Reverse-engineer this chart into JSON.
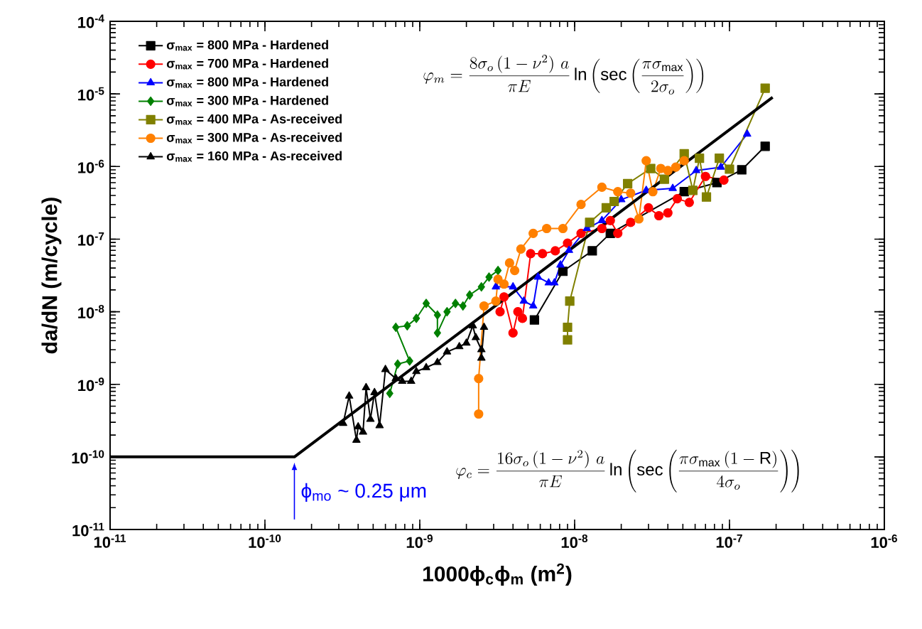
{
  "chart_data": {
    "type": "line",
    "xlabel": "1000ϕ$_{c}$ϕ$_{m}$ (m$^{2}$)",
    "ylabel": "da/dN (m/cycle)",
    "log": "xy",
    "grid": false,
    "legend": "top left",
    "xlim": [
      1e-11,
      1e-06
    ],
    "ylim": [
      1e-11,
      0.0001
    ],
    "xticks": [
      {
        "value": 1e-11,
        "label": "10$^{-11}$"
      },
      {
        "value": 1e-10,
        "label": "10$^{-10}$"
      },
      {
        "value": 1e-09,
        "label": "10$^{-9}$"
      },
      {
        "value": 1e-08,
        "label": "10$^{-8}$"
      },
      {
        "value": 1e-07,
        "label": "10$^{-7}$"
      },
      {
        "value": 1e-06,
        "label": "10$^{-6}$"
      }
    ],
    "yticks": [
      {
        "value": 1e-11,
        "label": "10$^{-11}$"
      },
      {
        "value": 1e-10,
        "label": "10$^{-10}$"
      },
      {
        "value": 1e-09,
        "label": "10$^{-9}$"
      },
      {
        "value": 1e-08,
        "label": "10$^{-8}$"
      },
      {
        "value": 1e-07,
        "label": "10$^{-7}$"
      },
      {
        "value": 1e-06,
        "label": "10$^{-6}$"
      },
      {
        "value": 1e-05,
        "label": "10$^{-5}$"
      },
      {
        "value": 0.0001,
        "label": "10$^{-4}$"
      }
    ],
    "annotations": [
      "\\varphi_m = \\frac{8\\sigma_o\\left(1-\\nu^2\\right)\\,a}{\\pi E}\\ln\\left(\\sec\\left(\\frac{\\pi\\sigma_{\\max}}{2\\sigma_o}\\right)\\right)",
      "\\varphi_c = \\frac{16\\sigma_o\\left(1-\\nu^2\\right)\\,a}{\\pi E}\\ln\\left(\\sec\\left(\\frac{\\pi\\sigma_{\\max}\\left(1-\\mathrm{R}\\right)}{4\\sigma_o}\\right)\\right)",
      {
        "text": "ϕ$_{mo}$ ~ 0.25 μm",
        "x": 1.55e-10,
        "y": 1e-10
      }
    ],
    "series": [
      {
        "name": "σ$_{max}$ = 800 MPa - Hardened",
        "color": "#000000",
        "marker": "square",
        "x": [
          5.5e-09,
          8.4e-09,
          1.3e-08,
          1.7e-08,
          5.1e-08,
          8.3e-08,
          1.2e-07,
          1.7e-07
        ],
        "values": [
          7.7e-09,
          3.6e-08,
          6.9e-08,
          1.2e-07,
          4.5e-07,
          6e-07,
          9e-07,
          1.9e-06
        ]
      },
      {
        "name": "σ$_{max}$ = 700 MPa - Hardened",
        "color": "#ff0000",
        "marker": "circle",
        "x": [
          3.3e-09,
          3.5e-09,
          4e-09,
          4.3e-09,
          4.6e-09,
          5.2e-09,
          6.2e-09,
          7.5e-09,
          9e-09,
          1.1e-08,
          1.5e-08,
          1.7e-08,
          1.9e-08,
          2.3e-08,
          3e-08,
          3.5e-08,
          4e-08,
          4.6e-08,
          5.5e-08,
          7e-08,
          9.2e-08
        ],
        "values": [
          1e-08,
          1.6e-08,
          5.1e-09,
          1e-08,
          8.1e-09,
          6.3e-08,
          6.3e-08,
          6.9e-08,
          8.8e-08,
          1.2e-07,
          1.4e-07,
          1.8e-07,
          1.2e-07,
          1.7e-07,
          2.7e-07,
          2.1e-07,
          2.3e-07,
          3.6e-07,
          3.2e-07,
          7.3e-07,
          6.5e-07
        ]
      },
      {
        "name": "σ$_{max}$ = 800 MPa - Hardened",
        "color": "#0000ff",
        "marker": "triangle",
        "x": [
          3.1e-09,
          4e-09,
          4.7e-09,
          5.4e-09,
          5.8e-09,
          6.8e-09,
          7.4e-09,
          8.1e-09,
          9.2e-09,
          1.2e-08,
          1.5e-08,
          2e-08,
          2.9e-08,
          4.3e-08,
          6.1e-08,
          8.8e-08,
          1.3e-07
        ],
        "values": [
          2.2e-08,
          2.2e-08,
          1.4e-08,
          1.2e-08,
          3e-08,
          2.5e-08,
          2.5e-08,
          4.4e-08,
          7e-08,
          1.4e-07,
          1.8e-07,
          3.5e-07,
          4.7e-07,
          5e-07,
          8.8e-07,
          9.8e-07,
          2.8e-06
        ]
      },
      {
        "name": "σ$_{max}$ = 300 MPa - Hardened",
        "color": "#008000",
        "marker": "diamond",
        "x": [
          6.4e-10,
          7.2e-10,
          8.6e-10,
          7e-10,
          8.3e-10,
          9.5e-10,
          1.1e-09,
          1.3e-09,
          1.3e-09,
          1.5e-09,
          1.7e-09,
          1.9e-09,
          2.1e-09,
          2.5e-09,
          2.8e-09,
          3.2e-09
        ],
        "values": [
          7.5e-10,
          1.9e-09,
          2.1e-09,
          6.1e-09,
          6.4e-09,
          8.1e-09,
          1.3e-08,
          9e-09,
          5.1e-09,
          1e-08,
          1.3e-08,
          1.2e-08,
          1.7e-08,
          2.2e-08,
          3e-08,
          3.7e-08
        ]
      },
      {
        "name": "σ$_{max}$ = 400 MPa - As-received",
        "color": "#808000",
        "marker": "square",
        "x": [
          9e-09,
          9e-09,
          9.3e-09,
          1.25e-08,
          1.6e-08,
          1.8e-08,
          2.2e-08,
          3.1e-08,
          3.8e-08,
          5.1e-08,
          5.8e-08,
          6.4e-08,
          7.1e-08,
          8.6e-08,
          1e-07,
          1.7e-07
        ],
        "values": [
          4.1e-09,
          6.1e-09,
          1.4e-08,
          1.7e-07,
          2.7e-07,
          3.3e-07,
          5.8e-07,
          9.4e-07,
          6.7e-07,
          1.5e-06,
          4.7e-07,
          1.3e-06,
          3.8e-07,
          1.3e-06,
          9.2e-07,
          1.2e-05
        ]
      },
      {
        "name": "σ$_{max}$ = 300 MPa - As-received",
        "color": "#ff8000",
        "marker": "circle",
        "x": [
          2.4e-09,
          2.4e-09,
          2.6e-09,
          3.1e-09,
          3.2e-09,
          3.5e-09,
          3.8e-09,
          4.1e-09,
          4.5e-09,
          5.4e-09,
          6.6e-09,
          8.4e-09,
          1.1e-08,
          1.5e-08,
          1.9e-08,
          2.3e-08,
          2.6e-08,
          2.9e-08,
          3.2e-08,
          3.6e-08,
          4e-08,
          4.5e-08,
          5.1e-08
        ],
        "values": [
          3.9e-10,
          1.2e-09,
          1.2e-08,
          1.4e-08,
          2.8e-08,
          2.4e-08,
          4.7e-08,
          3.7e-08,
          7.3e-08,
          1.2e-07,
          1.4e-07,
          1.4e-07,
          3e-07,
          5.2e-07,
          4.5e-07,
          4.3e-07,
          1.9e-07,
          1.2e-06,
          4.5e-07,
          9.4e-07,
          8.8e-07,
          9.8e-07,
          1.2e-06
        ]
      },
      {
        "name": "σ$_{max}$ = 160 MPa - As-received",
        "color": "#000000",
        "marker": "triangle",
        "x": [
          3.2e-10,
          3.5e-10,
          3.9e-10,
          4e-10,
          4.3e-10,
          4.5e-10,
          4.8e-10,
          5.1e-10,
          5.5e-10,
          6e-10,
          7e-10,
          7.7e-10,
          8.8e-10,
          9.5e-10,
          1.1e-09,
          1.3e-09,
          1.5e-09,
          1.8e-09,
          2e-09,
          2.2e-09,
          2.3e-09,
          2.5e-09,
          2.5e-09,
          2.6e-09
        ],
        "values": [
          2.9e-10,
          6.9e-10,
          1.7e-10,
          2.6e-10,
          2.2e-10,
          9e-10,
          3.3e-10,
          7.7e-10,
          2.7e-10,
          1.6e-09,
          1.2e-09,
          1.1e-09,
          1.1e-09,
          1.5e-09,
          1.7e-09,
          2e-09,
          2.8e-09,
          3.3e-09,
          3.7e-09,
          6.4e-09,
          4.4e-09,
          3e-09,
          2.3e-09,
          6.1e-09
        ]
      },
      {
        "type": "line",
        "color": "#000000",
        "marker": "none",
        "x": [
          1e-11,
          1.55e-10,
          1.9e-07
        ],
        "values": [
          1e-10,
          1e-10,
          9e-06
        ]
      }
    ]
  }
}
